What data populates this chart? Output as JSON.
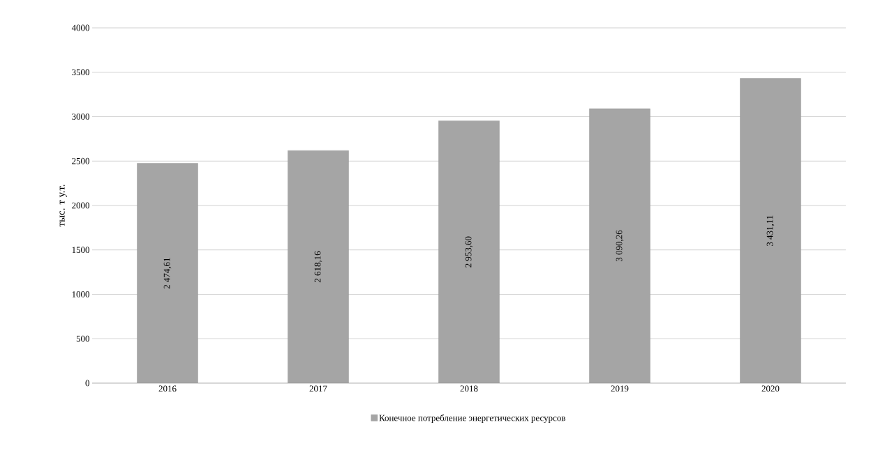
{
  "chart_data": {
    "type": "bar",
    "ylabel": "тыс. т у.т.",
    "categories": [
      "2016",
      "2017",
      "2018",
      "2019",
      "2020"
    ],
    "series": [
      {
        "name": "Конечное потребление энергетических ресурсов",
        "color": "#a5a5a5",
        "values": [
          2474.61,
          2618.16,
          2953.6,
          3090.26,
          3431.11
        ],
        "value_labels": [
          "2 474,61",
          "2 618,16",
          "2 953,60",
          "3 090,26",
          "3 431,11"
        ]
      }
    ],
    "ylim": [
      0,
      4000
    ],
    "yticks": [
      0,
      500,
      1000,
      1500,
      2000,
      2500,
      3000,
      3500,
      4000
    ],
    "grid": "y",
    "legend": "bottom"
  }
}
